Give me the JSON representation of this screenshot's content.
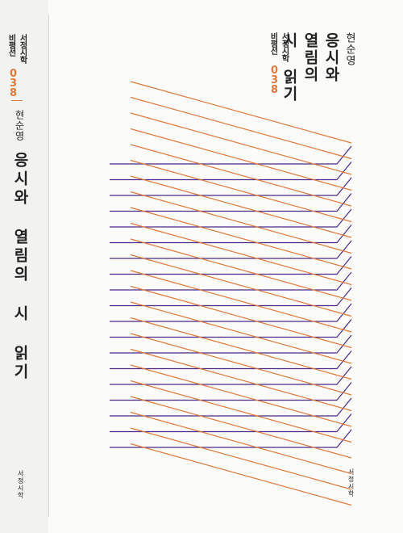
{
  "spine": {
    "series_line1": "서정시학",
    "series_line2": "비평선",
    "series_number": "038",
    "author": "현순영",
    "title": "응시와 열림의 시 읽기",
    "publisher": "서정시학"
  },
  "cover": {
    "series_line1": "서정시학",
    "series_line2": "비평선",
    "series_number": "038",
    "author": "현순영",
    "title_line1": "응시와",
    "title_line2": "열림의",
    "title_line3": "시 읽기",
    "publisher": "서정시학"
  },
  "colors": {
    "accent_orange": "#e07a3a",
    "line_purple": "#4b2a8c",
    "text": "#222222"
  }
}
